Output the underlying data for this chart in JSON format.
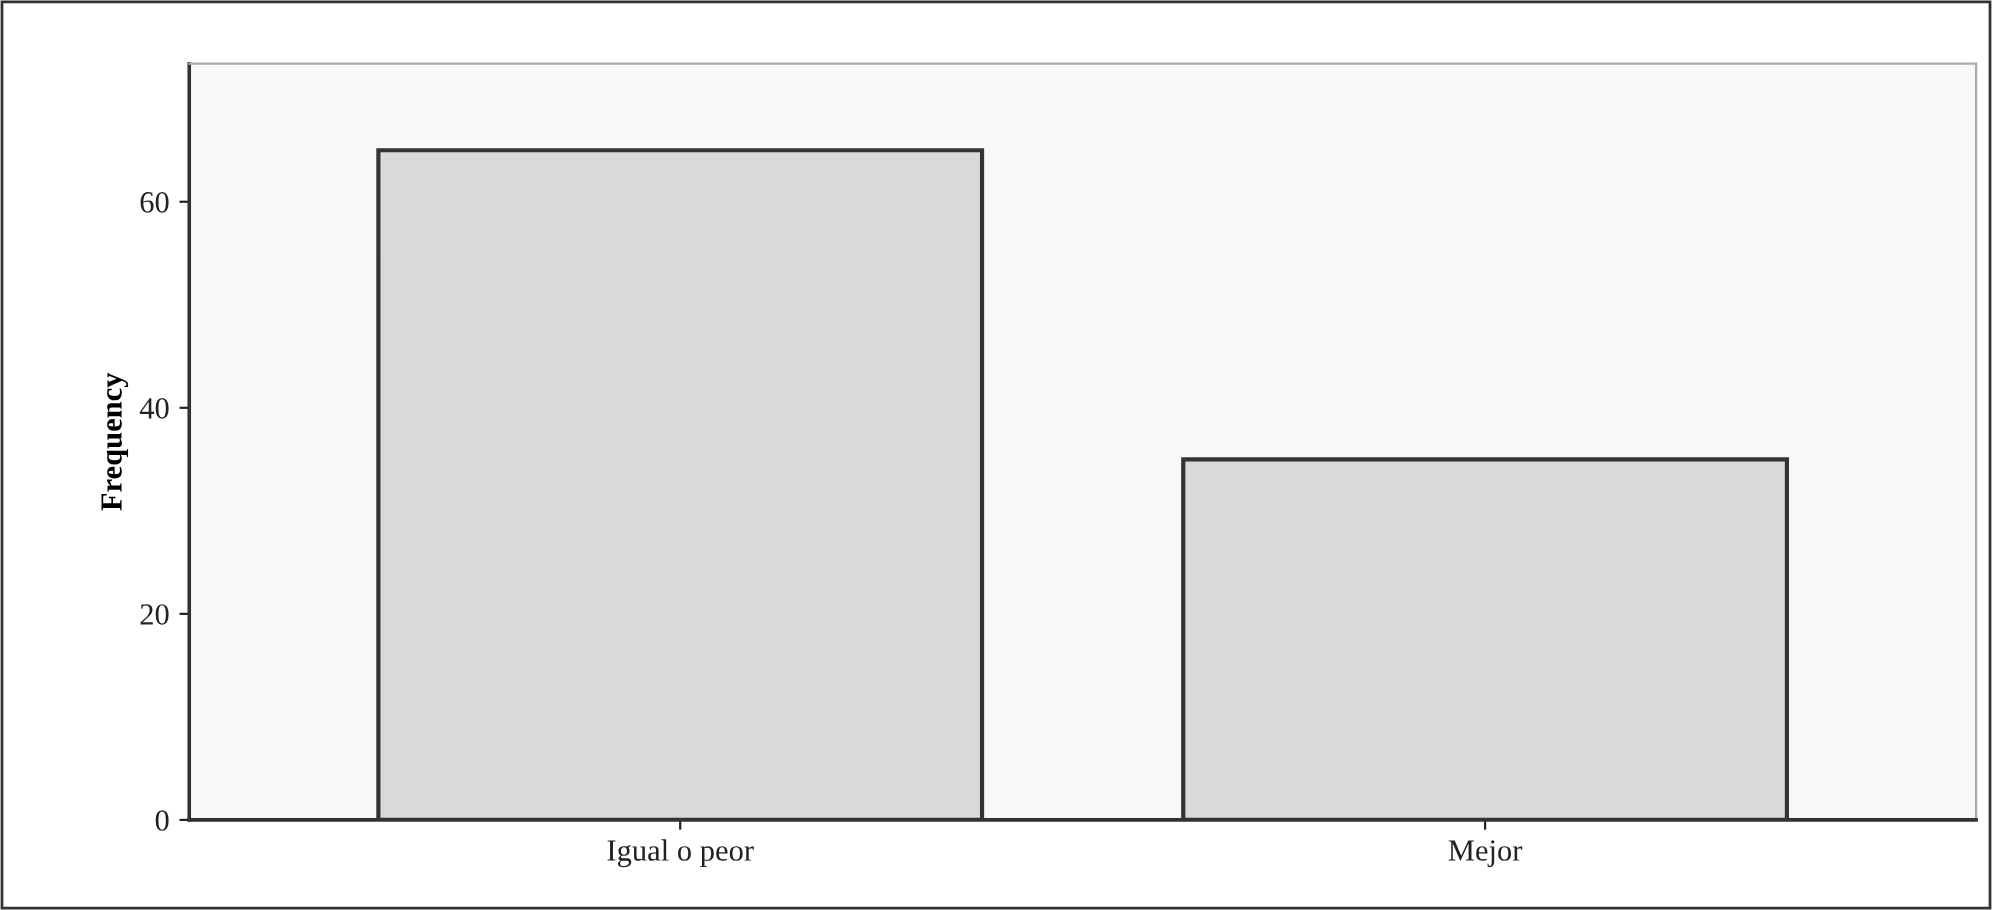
{
  "chart_data": {
    "type": "bar",
    "ylabel": "Frequency",
    "categories": [
      "Igual o peor",
      "Mejor"
    ],
    "values": [
      65,
      35
    ],
    "color": "#d9d9d9",
    "ylim": [
      0,
      73.4
    ],
    "yticks": [
      0,
      20,
      40,
      60
    ],
    "grid": false,
    "legend": false
  }
}
